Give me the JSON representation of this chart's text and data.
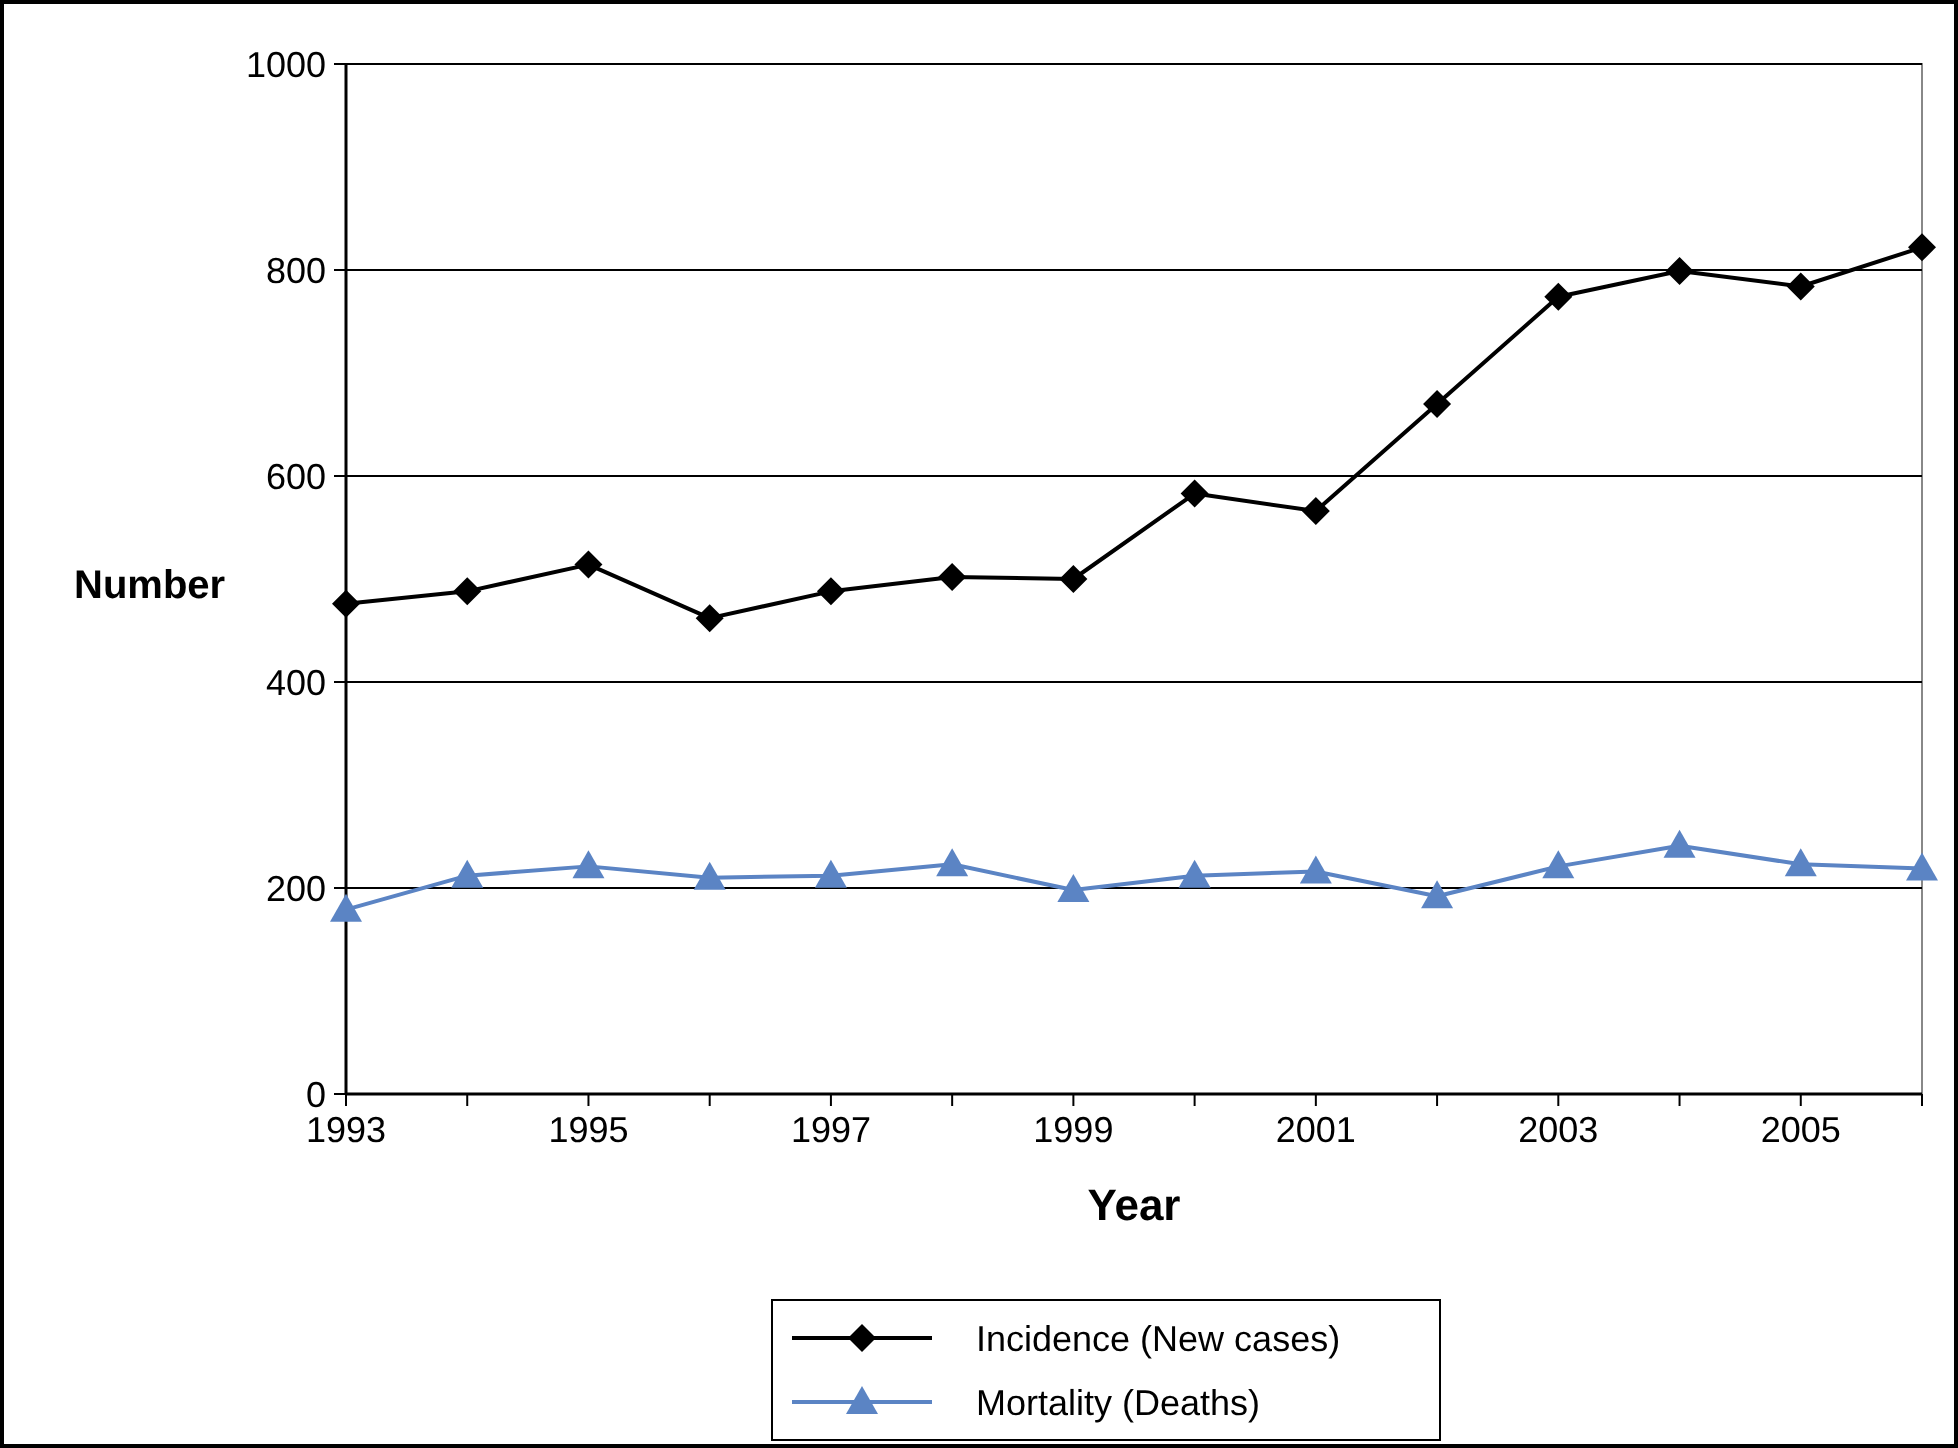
{
  "chart_data": {
    "type": "line",
    "xlabel": "Year",
    "ylabel": "Number",
    "x": [
      1993,
      1994,
      1995,
      1996,
      1997,
      1998,
      1999,
      2000,
      2001,
      2002,
      2003,
      2004,
      2005,
      2006
    ],
    "series": [
      {
        "name": "Incidence (New cases)",
        "color": "#000000",
        "marker": "diamond",
        "values": [
          476,
          488,
          514,
          462,
          488,
          502,
          500,
          583,
          566,
          670,
          774,
          799,
          784,
          822
        ]
      },
      {
        "name": "Mortality (Deaths)",
        "color": "#5b84c4",
        "marker": "triangle",
        "values": [
          179,
          212,
          221,
          210,
          212,
          223,
          198,
          212,
          216,
          192,
          221,
          241,
          223,
          219
        ]
      }
    ],
    "xlim": [
      1993,
      2006
    ],
    "xticks": [
      1993,
      {
        "value": 1994,
        "label": null
      },
      1995,
      {
        "value": 1996,
        "label": null
      },
      1997,
      {
        "value": 1998,
        "label": null
      },
      1999,
      {
        "value": 2000,
        "label": null
      },
      2001,
      {
        "value": 2002,
        "label": null
      },
      2003,
      {
        "value": 2004,
        "label": null
      },
      2005,
      {
        "value": 2006,
        "label": null
      }
    ],
    "ylim": [
      0,
      1000
    ],
    "yticks": [
      0,
      200,
      400,
      600,
      800,
      1000
    ],
    "grid": "y",
    "legend": "bottom",
    "line_style": "solid"
  }
}
